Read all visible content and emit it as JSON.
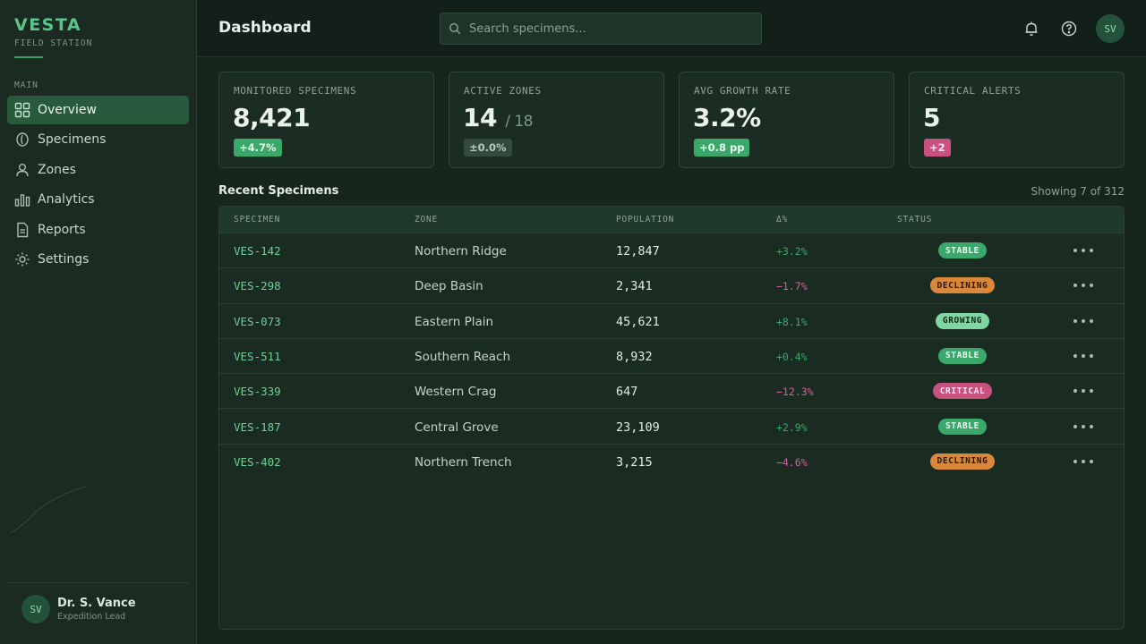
{
  "brand": {
    "name": "VESTA",
    "subtitle": "FIELD STATION"
  },
  "sidebar": {
    "section_label": "MAIN",
    "items": [
      {
        "label": "Overview",
        "icon": "grid-icon",
        "active": true
      },
      {
        "label": "Specimens",
        "icon": "leaf-icon",
        "active": false
      },
      {
        "label": "Zones",
        "icon": "person-icon",
        "active": false
      },
      {
        "label": "Analytics",
        "icon": "bar-chart-icon",
        "active": false
      },
      {
        "label": "Reports",
        "icon": "document-icon",
        "active": false
      },
      {
        "label": "Settings",
        "icon": "gear-icon",
        "active": false
      }
    ],
    "user": {
      "initials": "SV",
      "name": "Dr. S. Vance",
      "role": "Expedition Lead"
    }
  },
  "header": {
    "title": "Dashboard",
    "search_placeholder": "Search specimens...",
    "avatar_initials": "SV"
  },
  "stats": [
    {
      "label": "MONITORED SPECIMENS",
      "value": "8,421",
      "value_sub": "",
      "delta": "+4.7%",
      "delta_tone": "positive"
    },
    {
      "label": "ACTIVE ZONES",
      "value": "14",
      "value_sub": "/ 18",
      "delta": "±0.0%",
      "delta_tone": "neutral"
    },
    {
      "label": "AVG GROWTH RATE",
      "value": "3.2%",
      "value_sub": "",
      "delta": "+0.8 pp",
      "delta_tone": "positive"
    },
    {
      "label": "CRITICAL ALERTS",
      "value": "5",
      "value_sub": "",
      "delta": "+2",
      "delta_tone": "alert"
    }
  ],
  "table": {
    "title": "Recent Specimens",
    "meta": "Showing 7 of 312",
    "columns": [
      "SPECIMEN",
      "ZONE",
      "POPULATION",
      "Δ%",
      "STATUS"
    ],
    "rows": [
      {
        "id": "VES-142",
        "zone": "Northern Ridge",
        "population": "12,847",
        "delta": "+3.2%",
        "status": "STABLE"
      },
      {
        "id": "VES-298",
        "zone": "Deep Basin",
        "population": "2,341",
        "delta": "−1.7%",
        "status": "DECLINING"
      },
      {
        "id": "VES-073",
        "zone": "Eastern Plain",
        "population": "45,621",
        "delta": "+8.1%",
        "status": "GROWING"
      },
      {
        "id": "VES-511",
        "zone": "Southern Reach",
        "population": "8,932",
        "delta": "+0.4%",
        "status": "STABLE"
      },
      {
        "id": "VES-339",
        "zone": "Western Crag",
        "population": "647",
        "delta": "−12.3%",
        "status": "CRITICAL"
      },
      {
        "id": "VES-187",
        "zone": "Central Grove",
        "population": "23,109",
        "delta": "+2.9%",
        "status": "STABLE"
      },
      {
        "id": "VES-402",
        "zone": "Northern Trench",
        "population": "3,215",
        "delta": "−4.6%",
        "status": "DECLINING"
      }
    ]
  },
  "colors": {
    "accent": "#5cc48a",
    "positive": "#3aa86b",
    "negative": "#d0629a",
    "stable": "#3aa86b",
    "declining": "#d9873a",
    "growing": "#7fd8a2",
    "critical": "#c9517f"
  }
}
